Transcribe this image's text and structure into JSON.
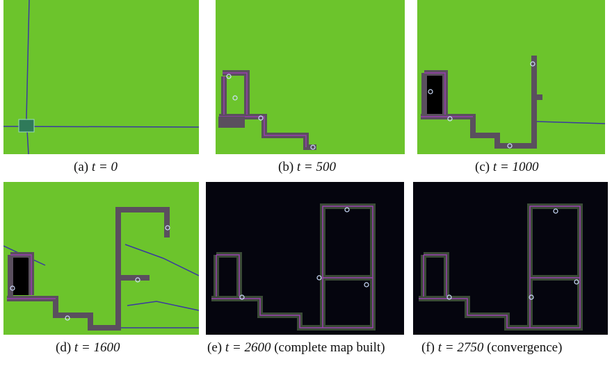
{
  "panels": [
    {
      "label": "(a)",
      "math": "t = 0"
    },
    {
      "label": "(b)",
      "math": "t = 500"
    },
    {
      "label": "(c)",
      "math": "t = 1000"
    },
    {
      "label": "(d)",
      "math": "t = 1600"
    },
    {
      "label": "(e)",
      "math": "t = 2600",
      "note": "(complete map built)"
    },
    {
      "label": "(f)",
      "math": "t = 2750",
      "note": "(convergence)"
    }
  ]
}
